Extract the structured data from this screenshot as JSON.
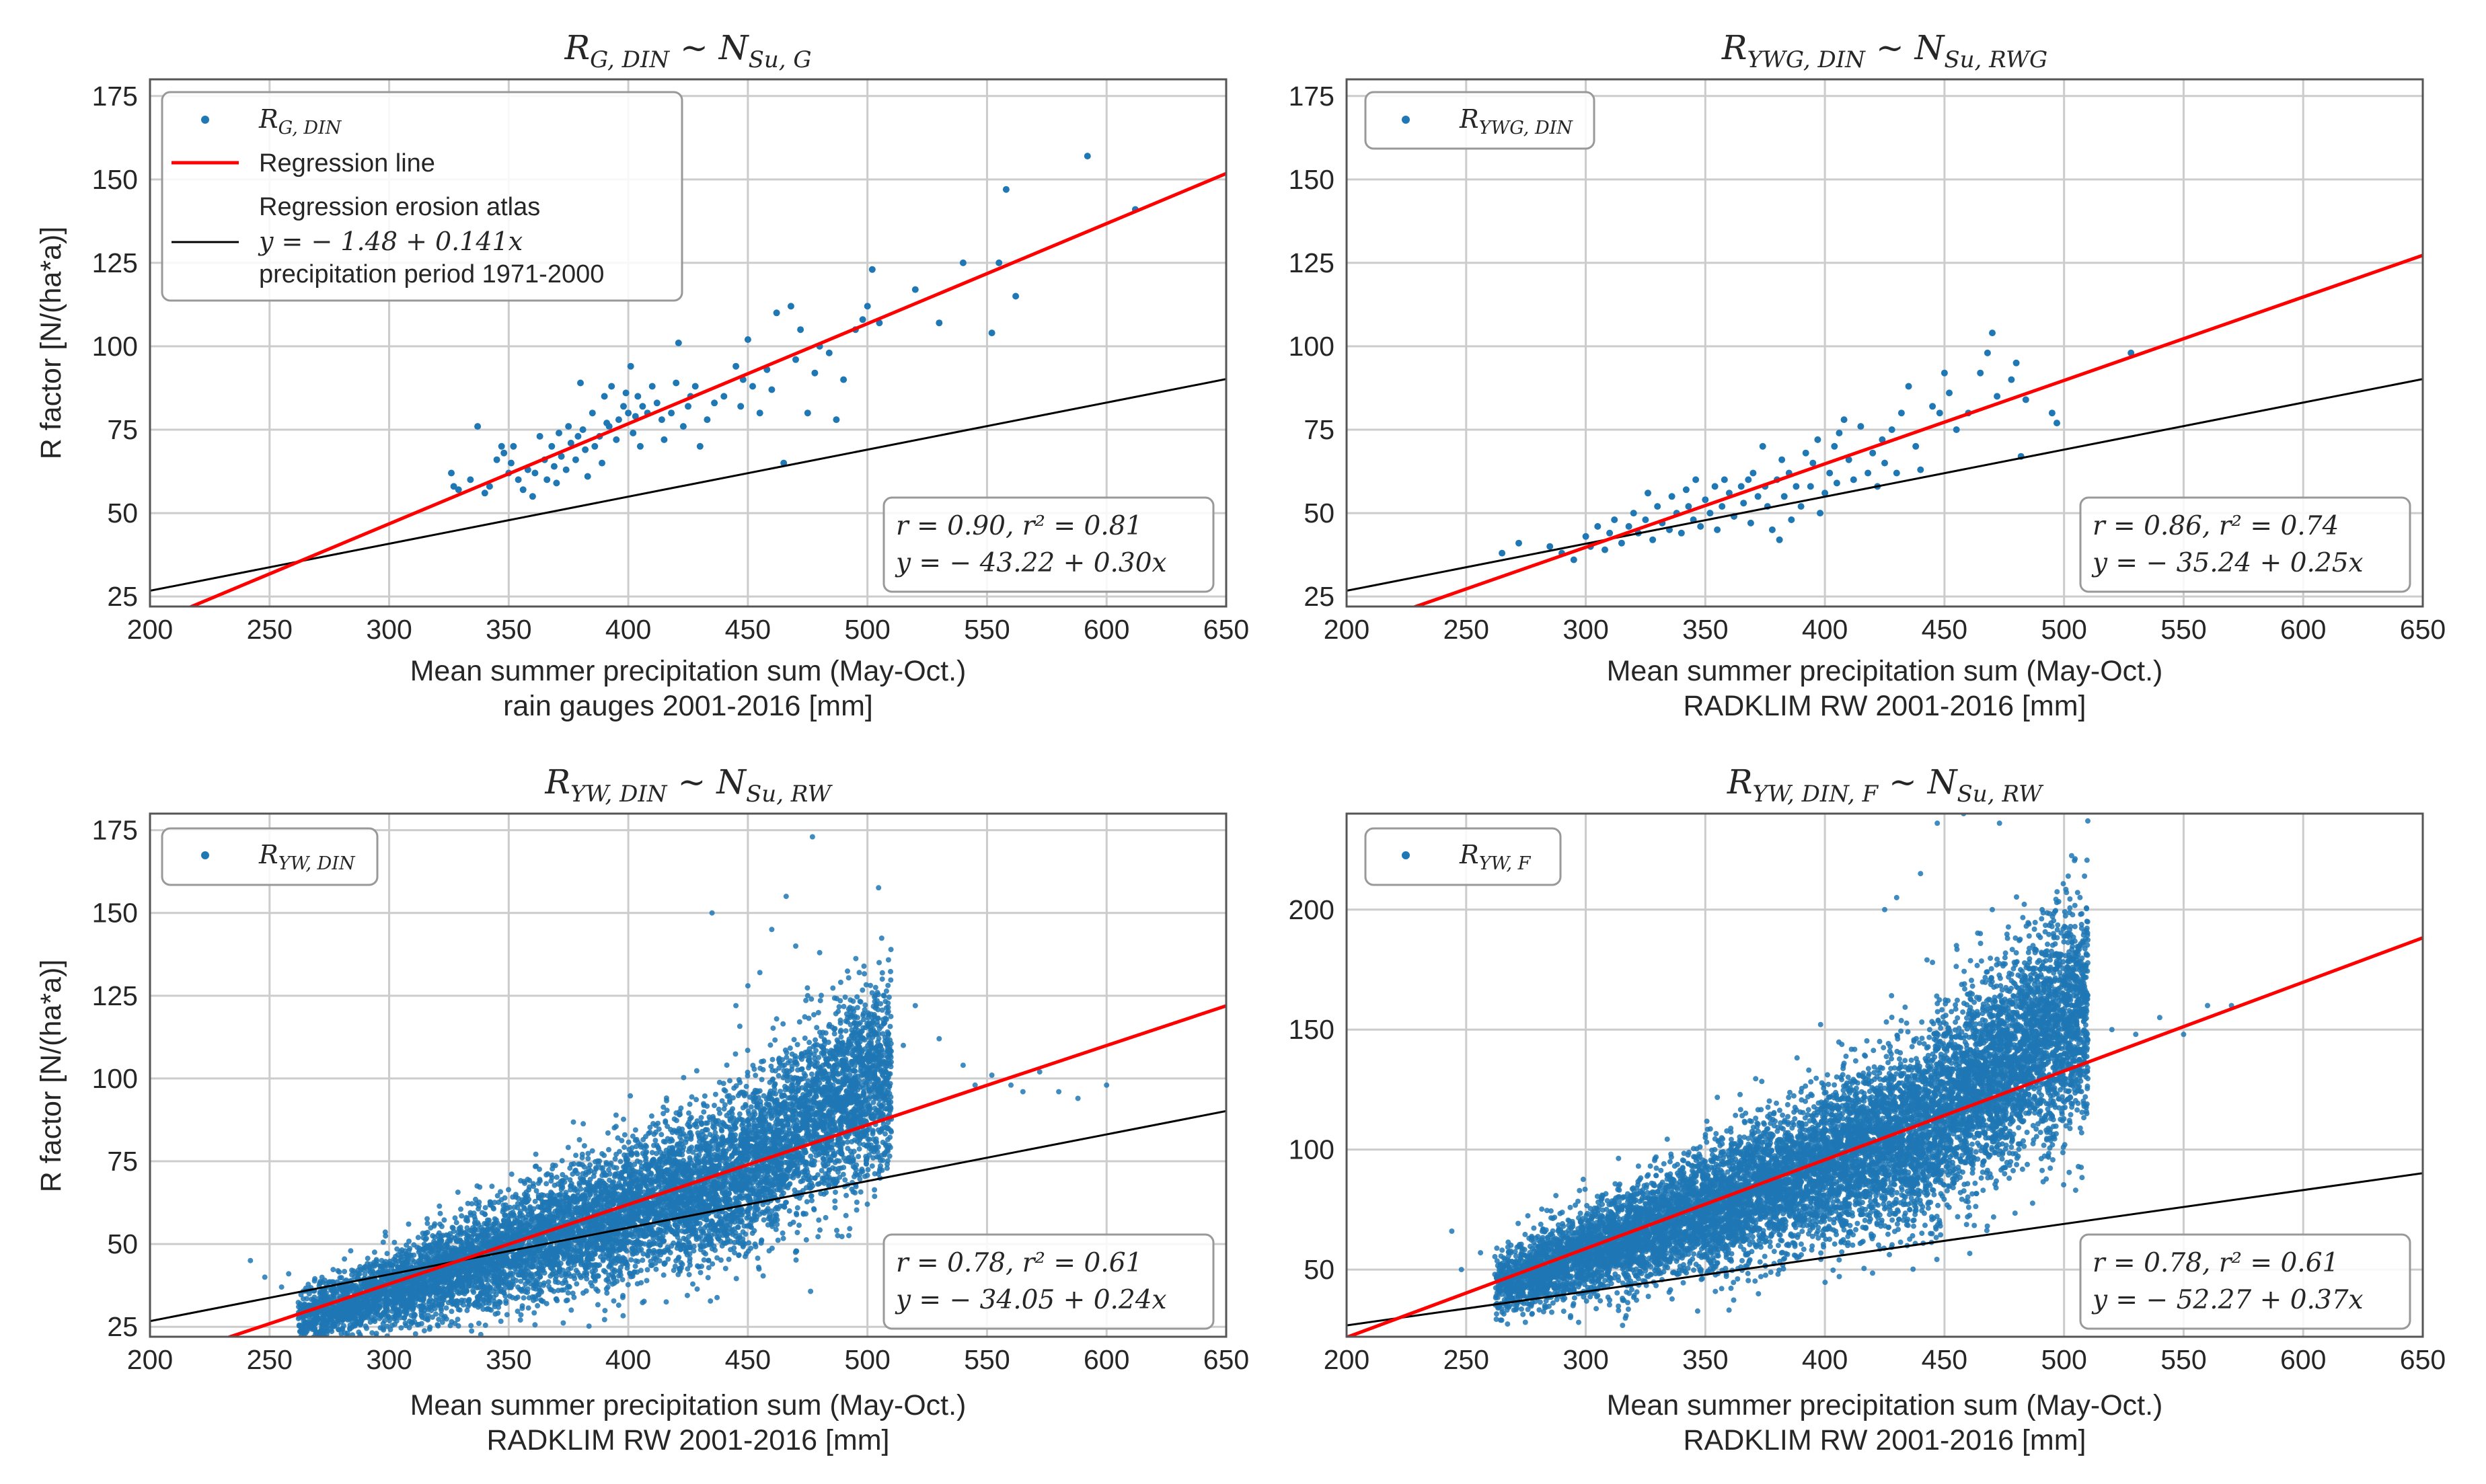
{
  "figure": {
    "colors": {
      "scatter": "#1f77b4",
      "regression": "#ff0000",
      "atlas": "#000000",
      "grid": "#cccccc",
      "frame": "#555555"
    }
  },
  "chart_data": [
    {
      "type": "scatter",
      "panel": "top-left",
      "title": "R_{G, DIN} ~ N_{Su, G}",
      "title_parts": {
        "main": "R",
        "sub1": "G, DIN",
        "mid": " ~ N",
        "sub2": "Su, G"
      },
      "xlabel": "Mean summer precipitation sum (May-Oct.)",
      "xlabel2": "rain gauges 2001-2016 [mm]",
      "ylabel": "R factor [N/(ha*a)]",
      "xlim": [
        200,
        650
      ],
      "ylim": [
        22,
        180
      ],
      "xticks": [
        "200",
        "250",
        "300",
        "350",
        "400",
        "450",
        "500",
        "550",
        "600",
        "650"
      ],
      "yticks": [
        "25",
        "50",
        "75",
        "100",
        "125",
        "150",
        "175"
      ],
      "legend": {
        "placement": "top-left",
        "entries": [
          {
            "kind": "marker",
            "label_main": "R",
            "label_sub": "G, DIN"
          },
          {
            "kind": "line-red",
            "label": "Regression line"
          },
          {
            "kind": "line-black",
            "label_l1": "Regression erosion atlas",
            "label_l2": "y = − 1.48 + 0.141x",
            "label_l3": "precipitation period 1971-2000"
          }
        ]
      },
      "stats": {
        "line1": "r = 0.90, r² = 0.81",
        "line2": "y = − 43.22 + 0.30x",
        "placement": "bottom-right"
      },
      "regression": {
        "intercept": -43.22,
        "slope": 0.3
      },
      "atlas": {
        "intercept": -1.48,
        "slope": 0.141
      },
      "points": [
        [
          326,
          62
        ],
        [
          327,
          58
        ],
        [
          329,
          57
        ],
        [
          334,
          60
        ],
        [
          337,
          76
        ],
        [
          340,
          56
        ],
        [
          342,
          58
        ],
        [
          345,
          66
        ],
        [
          347,
          70
        ],
        [
          348,
          68
        ],
        [
          350,
          62
        ],
        [
          351,
          65
        ],
        [
          352,
          70
        ],
        [
          354,
          60
        ],
        [
          356,
          57
        ],
        [
          358,
          63
        ],
        [
          360,
          55
        ],
        [
          361,
          62
        ],
        [
          363,
          73
        ],
        [
          365,
          66
        ],
        [
          366,
          60
        ],
        [
          368,
          70
        ],
        [
          369,
          64
        ],
        [
          370,
          59
        ],
        [
          371,
          74
        ],
        [
          372,
          67
        ],
        [
          374,
          63
        ],
        [
          375,
          76
        ],
        [
          376,
          71
        ],
        [
          378,
          66
        ],
        [
          379,
          73
        ],
        [
          380,
          89
        ],
        [
          381,
          75
        ],
        [
          382,
          69
        ],
        [
          383,
          61
        ],
        [
          385,
          80
        ],
        [
          386,
          70
        ],
        [
          388,
          73
        ],
        [
          389,
          65
        ],
        [
          390,
          85
        ],
        [
          391,
          77
        ],
        [
          392,
          76
        ],
        [
          393,
          88
        ],
        [
          395,
          72
        ],
        [
          396,
          78
        ],
        [
          398,
          82
        ],
        [
          399,
          86
        ],
        [
          400,
          80
        ],
        [
          401,
          94
        ],
        [
          402,
          74
        ],
        [
          403,
          79
        ],
        [
          404,
          85
        ],
        [
          405,
          70
        ],
        [
          406,
          82
        ],
        [
          408,
          80
        ],
        [
          410,
          88
        ],
        [
          412,
          83
        ],
        [
          414,
          78
        ],
        [
          415,
          72
        ],
        [
          418,
          80
        ],
        [
          420,
          89
        ],
        [
          421,
          101
        ],
        [
          423,
          76
        ],
        [
          425,
          82
        ],
        [
          426,
          85
        ],
        [
          428,
          88
        ],
        [
          430,
          70
        ],
        [
          433,
          78
        ],
        [
          436,
          83
        ],
        [
          440,
          85
        ],
        [
          445,
          94
        ],
        [
          447,
          82
        ],
        [
          448,
          90
        ],
        [
          450,
          102
        ],
        [
          452,
          88
        ],
        [
          455,
          80
        ],
        [
          458,
          93
        ],
        [
          460,
          87
        ],
        [
          462,
          110
        ],
        [
          465,
          65
        ],
        [
          468,
          112
        ],
        [
          470,
          96
        ],
        [
          472,
          105
        ],
        [
          475,
          80
        ],
        [
          478,
          92
        ],
        [
          480,
          100
        ],
        [
          484,
          98
        ],
        [
          487,
          78
        ],
        [
          490,
          90
        ],
        [
          495,
          105
        ],
        [
          498,
          108
        ],
        [
          500,
          112
        ],
        [
          502,
          123
        ],
        [
          505,
          107
        ],
        [
          520,
          117
        ],
        [
          530,
          107
        ],
        [
          540,
          125
        ],
        [
          552,
          104
        ],
        [
          555,
          125
        ],
        [
          558,
          147
        ],
        [
          562,
          115
        ],
        [
          592,
          157
        ],
        [
          612,
          141
        ]
      ]
    },
    {
      "type": "scatter",
      "panel": "top-right",
      "title": "R_{YWG, DIN} ~ N_{Su, RWG}",
      "title_parts": {
        "main": "R",
        "sub1": "YWG, DIN",
        "mid": " ~ N",
        "sub2": "Su, RWG"
      },
      "xlabel": "Mean summer precipitation sum (May-Oct.)",
      "xlabel2": "RADKLIM RW 2001-2016 [mm]",
      "ylabel": "",
      "xlim": [
        200,
        650
      ],
      "ylim": [
        22,
        180
      ],
      "xticks": [
        "200",
        "250",
        "300",
        "350",
        "400",
        "450",
        "500",
        "550",
        "600",
        "650"
      ],
      "yticks": [
        "25",
        "50",
        "75",
        "100",
        "125",
        "150",
        "175"
      ],
      "legend": {
        "placement": "top-left",
        "entries": [
          {
            "kind": "marker",
            "label_main": "R",
            "label_sub": "YWG, DIN"
          }
        ]
      },
      "stats": {
        "line1": "r = 0.86, r² = 0.74",
        "line2": "y = − 35.24 + 0.25x",
        "placement": "bottom-right"
      },
      "regression": {
        "intercept": -35.24,
        "slope": 0.25
      },
      "atlas": {
        "intercept": -1.48,
        "slope": 0.141
      },
      "points": [
        [
          265,
          38
        ],
        [
          272,
          41
        ],
        [
          285,
          40
        ],
        [
          290,
          38
        ],
        [
          295,
          36
        ],
        [
          300,
          43
        ],
        [
          302,
          40
        ],
        [
          305,
          46
        ],
        [
          308,
          39
        ],
        [
          310,
          44
        ],
        [
          312,
          48
        ],
        [
          315,
          41
        ],
        [
          318,
          46
        ],
        [
          320,
          50
        ],
        [
          322,
          44
        ],
        [
          325,
          48
        ],
        [
          326,
          56
        ],
        [
          328,
          42
        ],
        [
          330,
          52
        ],
        [
          332,
          47
        ],
        [
          335,
          45
        ],
        [
          336,
          55
        ],
        [
          338,
          50
        ],
        [
          340,
          44
        ],
        [
          342,
          57
        ],
        [
          343,
          52
        ],
        [
          345,
          48
        ],
        [
          346,
          60
        ],
        [
          348,
          46
        ],
        [
          350,
          54
        ],
        [
          352,
          50
        ],
        [
          354,
          58
        ],
        [
          355,
          45
        ],
        [
          357,
          52
        ],
        [
          358,
          60
        ],
        [
          360,
          56
        ],
        [
          362,
          49
        ],
        [
          365,
          58
        ],
        [
          366,
          53
        ],
        [
          368,
          60
        ],
        [
          369,
          47
        ],
        [
          370,
          62
        ],
        [
          372,
          55
        ],
        [
          374,
          70
        ],
        [
          375,
          58
        ],
        [
          376,
          52
        ],
        [
          378,
          45
        ],
        [
          380,
          60
        ],
        [
          381,
          42
        ],
        [
          382,
          66
        ],
        [
          383,
          55
        ],
        [
          385,
          62
        ],
        [
          386,
          48
        ],
        [
          388,
          58
        ],
        [
          390,
          52
        ],
        [
          392,
          68
        ],
        [
          394,
          58
        ],
        [
          395,
          65
        ],
        [
          397,
          72
        ],
        [
          398,
          50
        ],
        [
          400,
          56
        ],
        [
          402,
          62
        ],
        [
          404,
          70
        ],
        [
          405,
          59
        ],
        [
          406,
          74
        ],
        [
          408,
          78
        ],
        [
          410,
          66
        ],
        [
          412,
          60
        ],
        [
          415,
          76
        ],
        [
          418,
          62
        ],
        [
          420,
          68
        ],
        [
          422,
          58
        ],
        [
          424,
          72
        ],
        [
          425,
          65
        ],
        [
          428,
          75
        ],
        [
          430,
          62
        ],
        [
          432,
          80
        ],
        [
          435,
          88
        ],
        [
          438,
          70
        ],
        [
          440,
          63
        ],
        [
          445,
          82
        ],
        [
          448,
          80
        ],
        [
          450,
          92
        ],
        [
          452,
          86
        ],
        [
          455,
          75
        ],
        [
          460,
          80
        ],
        [
          465,
          92
        ],
        [
          468,
          98
        ],
        [
          470,
          104
        ],
        [
          472,
          85
        ],
        [
          478,
          90
        ],
        [
          480,
          95
        ],
        [
          482,
          67
        ],
        [
          484,
          84
        ],
        [
          495,
          80
        ],
        [
          497,
          77
        ],
        [
          528,
          98
        ]
      ]
    },
    {
      "type": "scatter",
      "panel": "bottom-left",
      "title": "R_{YW, DIN} ~ N_{Su, RW}",
      "title_parts": {
        "main": "R",
        "sub1": "YW, DIN",
        "mid": " ~ N",
        "sub2": "Su, RW"
      },
      "xlabel": "Mean summer precipitation sum (May-Oct.)",
      "xlabel2": "RADKLIM RW 2001-2016 [mm]",
      "ylabel": "R factor [N/(ha*a)]",
      "xlim": [
        200,
        650
      ],
      "ylim": [
        22,
        180
      ],
      "xticks": [
        "200",
        "250",
        "300",
        "350",
        "400",
        "450",
        "500",
        "550",
        "600",
        "650"
      ],
      "yticks": [
        "25",
        "50",
        "75",
        "100",
        "125",
        "150",
        "175"
      ],
      "legend": {
        "placement": "top-left",
        "entries": [
          {
            "kind": "marker",
            "label_main": "R",
            "label_sub": "YW, DIN"
          }
        ]
      },
      "stats": {
        "line1": "r = 0.78, r² = 0.61",
        "line2": "y = − 34.05 + 0.24x",
        "placement": "bottom-right"
      },
      "regression": {
        "intercept": -34.05,
        "slope": 0.24
      },
      "atlas": {
        "intercept": -1.48,
        "slope": 0.141
      },
      "cloud": {
        "n": 9000,
        "xmin": 262,
        "xmax": 510,
        "seed": 7
      },
      "outliers": [
        [
          477,
          173
        ],
        [
          466,
          155
        ],
        [
          460,
          145
        ],
        [
          435,
          150
        ],
        [
          455,
          132
        ],
        [
          450,
          128
        ],
        [
          445,
          122
        ],
        [
          470,
          140
        ],
        [
          480,
          138
        ],
        [
          462,
          118
        ],
        [
          475,
          125
        ],
        [
          520,
          122
        ],
        [
          530,
          112
        ],
        [
          540,
          104
        ],
        [
          545,
          98
        ],
        [
          552,
          101
        ],
        [
          560,
          98
        ],
        [
          565,
          96
        ],
        [
          572,
          102
        ],
        [
          580,
          96
        ],
        [
          588,
          94
        ],
        [
          600,
          98
        ],
        [
          242,
          45
        ],
        [
          248,
          40
        ],
        [
          255,
          37
        ],
        [
          258,
          41
        ],
        [
          515,
          110
        ],
        [
          505,
          105
        ]
      ]
    },
    {
      "type": "scatter",
      "panel": "bottom-right",
      "title": "R_{YW, DIN, F} ~ N_{Su, RW}",
      "title_parts": {
        "main": "R",
        "sub1": "YW, DIN, F",
        "mid": " ~ N",
        "sub2": "Su, RW"
      },
      "xlabel": "Mean summer precipitation sum (May-Oct.)",
      "xlabel2": "RADKLIM RW 2001-2016 [mm]",
      "ylabel": "",
      "xlim": [
        200,
        650
      ],
      "ylim": [
        22,
        240
      ],
      "xticks": [
        "200",
        "250",
        "300",
        "350",
        "400",
        "450",
        "500",
        "550",
        "600",
        "650"
      ],
      "yticks": [
        "50",
        "100",
        "150",
        "200"
      ],
      "legend": {
        "placement": "top-left",
        "entries": [
          {
            "kind": "marker",
            "label_main": "R",
            "label_sub": "YW, F"
          }
        ]
      },
      "stats": {
        "line1": "r = 0.78, r² = 0.61",
        "line2": "y = − 52.27 + 0.37x",
        "placement": "bottom-right"
      },
      "regression": {
        "intercept": -52.27,
        "slope": 0.37
      },
      "atlas": {
        "intercept": -1.48,
        "slope": 0.141
      },
      "cloud": {
        "n": 11000,
        "xmin": 262,
        "xmax": 510,
        "seed": 11
      },
      "outliers": [
        [
          447,
          236
        ],
        [
          458,
          240
        ],
        [
          473,
          236
        ],
        [
          430,
          205
        ],
        [
          440,
          215
        ],
        [
          425,
          200
        ],
        [
          465,
          190
        ],
        [
          470,
          200
        ],
        [
          455,
          185
        ],
        [
          480,
          182
        ],
        [
          445,
          178
        ],
        [
          520,
          150
        ],
        [
          530,
          148
        ],
        [
          540,
          155
        ],
        [
          550,
          148
        ],
        [
          560,
          160
        ],
        [
          570,
          160
        ],
        [
          248,
          50
        ],
        [
          244,
          66
        ],
        [
          256,
          57
        ],
        [
          262,
          48
        ],
        [
          500,
          170
        ],
        [
          490,
          175
        ]
      ]
    }
  ]
}
